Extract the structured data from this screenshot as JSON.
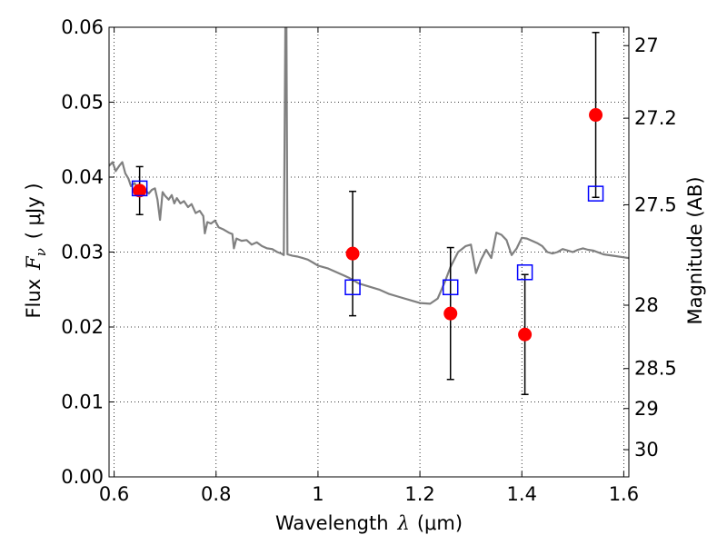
{
  "chart_data": {
    "type": "scatter",
    "xlabel": {
      "pre": "Wavelength",
      "sym": "λ",
      "unit": "(μm)"
    },
    "ylabel": {
      "pre": "Flux",
      "sym": "F",
      "sub": "ν",
      "unit": "( μJy )"
    },
    "y2label": "Magnitude (AB)",
    "xlim": [
      0.59,
      1.61
    ],
    "ylim": [
      0.0,
      0.06
    ],
    "grid": true,
    "x_ticks": [
      {
        "v": 0.6,
        "label": "0.6"
      },
      {
        "v": 0.8,
        "label": "0.8"
      },
      {
        "v": 1.0,
        "label": "1"
      },
      {
        "v": 1.2,
        "label": "1.2"
      },
      {
        "v": 1.4,
        "label": "1.4"
      },
      {
        "v": 1.6,
        "label": "1.6"
      }
    ],
    "y_ticks": [
      {
        "v": 0.0,
        "label": "0.00"
      },
      {
        "v": 0.01,
        "label": "0.01"
      },
      {
        "v": 0.02,
        "label": "0.02"
      },
      {
        "v": 0.03,
        "label": "0.03"
      },
      {
        "v": 0.04,
        "label": "0.04"
      },
      {
        "v": 0.05,
        "label": "0.05"
      },
      {
        "v": 0.06,
        "label": "0.06"
      }
    ],
    "y2_ticks": [
      {
        "v": 27.0,
        "label": "27"
      },
      {
        "v": 27.2,
        "label": "27.2"
      },
      {
        "v": 27.5,
        "label": "27.5"
      },
      {
        "v": 28.0,
        "label": "28"
      },
      {
        "v": 28.5,
        "label": "28.5"
      },
      {
        "v": 29.0,
        "label": "29"
      },
      {
        "v": 30.0,
        "label": "30"
      }
    ],
    "series": [
      {
        "kind": "line",
        "color": "#808080",
        "points": [
          [
            0.59,
            0.0415
          ],
          [
            0.597,
            0.042
          ],
          [
            0.603,
            0.0408
          ],
          [
            0.61,
            0.0415
          ],
          [
            0.616,
            0.042
          ],
          [
            0.622,
            0.0405
          ],
          [
            0.628,
            0.0398
          ],
          [
            0.633,
            0.0388
          ],
          [
            0.64,
            0.0392
          ],
          [
            0.647,
            0.0385
          ],
          [
            0.655,
            0.0388
          ],
          [
            0.662,
            0.0382
          ],
          [
            0.668,
            0.0378
          ],
          [
            0.674,
            0.0383
          ],
          [
            0.68,
            0.0385
          ],
          [
            0.685,
            0.037
          ],
          [
            0.69,
            0.0343
          ],
          [
            0.695,
            0.038
          ],
          [
            0.7,
            0.0375
          ],
          [
            0.707,
            0.037
          ],
          [
            0.713,
            0.0376
          ],
          [
            0.718,
            0.0365
          ],
          [
            0.723,
            0.0372
          ],
          [
            0.73,
            0.0365
          ],
          [
            0.737,
            0.0368
          ],
          [
            0.745,
            0.036
          ],
          [
            0.752,
            0.0364
          ],
          [
            0.76,
            0.0352
          ],
          [
            0.768,
            0.0355
          ],
          [
            0.775,
            0.0348
          ],
          [
            0.778,
            0.0325
          ],
          [
            0.783,
            0.034
          ],
          [
            0.79,
            0.0338
          ],
          [
            0.798,
            0.0342
          ],
          [
            0.805,
            0.0333
          ],
          [
            0.815,
            0.033
          ],
          [
            0.825,
            0.0326
          ],
          [
            0.832,
            0.0324
          ],
          [
            0.835,
            0.0305
          ],
          [
            0.84,
            0.0318
          ],
          [
            0.85,
            0.0315
          ],
          [
            0.86,
            0.0316
          ],
          [
            0.87,
            0.031
          ],
          [
            0.88,
            0.0313
          ],
          [
            0.89,
            0.0308
          ],
          [
            0.9,
            0.0305
          ],
          [
            0.91,
            0.0304
          ],
          [
            0.92,
            0.03
          ],
          [
            0.928,
            0.0298
          ],
          [
            0.933,
            0.0296
          ],
          [
            0.936,
            0.06
          ],
          [
            0.938,
            0.06
          ],
          [
            0.94,
            0.0297
          ],
          [
            0.95,
            0.0295
          ],
          [
            0.96,
            0.0294
          ],
          [
            0.97,
            0.0292
          ],
          [
            0.98,
            0.029
          ],
          [
            0.99,
            0.0286
          ],
          [
            1.0,
            0.0282
          ],
          [
            1.02,
            0.0278
          ],
          [
            1.04,
            0.0272
          ],
          [
            1.06,
            0.0266
          ],
          [
            1.08,
            0.0258
          ],
          [
            1.1,
            0.0254
          ],
          [
            1.12,
            0.025
          ],
          [
            1.14,
            0.0244
          ],
          [
            1.16,
            0.024
          ],
          [
            1.18,
            0.0236
          ],
          [
            1.2,
            0.0232
          ],
          [
            1.22,
            0.0231
          ],
          [
            1.235,
            0.0238
          ],
          [
            1.25,
            0.0262
          ],
          [
            1.26,
            0.028
          ],
          [
            1.275,
            0.03
          ],
          [
            1.29,
            0.0308
          ],
          [
            1.3,
            0.031
          ],
          [
            1.31,
            0.0272
          ],
          [
            1.32,
            0.029
          ],
          [
            1.33,
            0.0303
          ],
          [
            1.34,
            0.0292
          ],
          [
            1.35,
            0.0326
          ],
          [
            1.36,
            0.0323
          ],
          [
            1.37,
            0.0316
          ],
          [
            1.38,
            0.0296
          ],
          [
            1.39,
            0.0305
          ],
          [
            1.4,
            0.0319
          ],
          [
            1.41,
            0.0318
          ],
          [
            1.42,
            0.0315
          ],
          [
            1.43,
            0.0312
          ],
          [
            1.44,
            0.0308
          ],
          [
            1.45,
            0.03
          ],
          [
            1.46,
            0.0298
          ],
          [
            1.47,
            0.03
          ],
          [
            1.48,
            0.0304
          ],
          [
            1.49,
            0.0302
          ],
          [
            1.5,
            0.03
          ],
          [
            1.51,
            0.0303
          ],
          [
            1.52,
            0.0305
          ],
          [
            1.53,
            0.0303
          ],
          [
            1.54,
            0.0302
          ],
          [
            1.56,
            0.0297
          ],
          [
            1.58,
            0.0295
          ],
          [
            1.6,
            0.0293
          ],
          [
            1.61,
            0.0292
          ]
        ]
      },
      {
        "kind": "points",
        "marker": "circle",
        "color": "#ff0000",
        "points": [
          {
            "x": 0.65,
            "y": 0.0382,
            "err": 0.0032
          },
          {
            "x": 1.068,
            "y": 0.0298,
            "err": 0.0083
          },
          {
            "x": 1.26,
            "y": 0.0218,
            "err": 0.0088
          },
          {
            "x": 1.406,
            "y": 0.019,
            "err": 0.008
          },
          {
            "x": 1.545,
            "y": 0.0483,
            "err": 0.011
          }
        ]
      },
      {
        "kind": "points",
        "marker": "open-square",
        "color": "#0000ff",
        "points": [
          {
            "x": 0.65,
            "y": 0.0385
          },
          {
            "x": 1.068,
            "y": 0.0253
          },
          {
            "x": 1.26,
            "y": 0.0253
          },
          {
            "x": 1.406,
            "y": 0.0273
          },
          {
            "x": 1.545,
            "y": 0.0378
          }
        ]
      }
    ],
    "colors": {
      "line": "#808080",
      "circle": "#ff0000",
      "square": "#0000ff",
      "errorbar": "#000000",
      "grid": "#000000"
    }
  }
}
